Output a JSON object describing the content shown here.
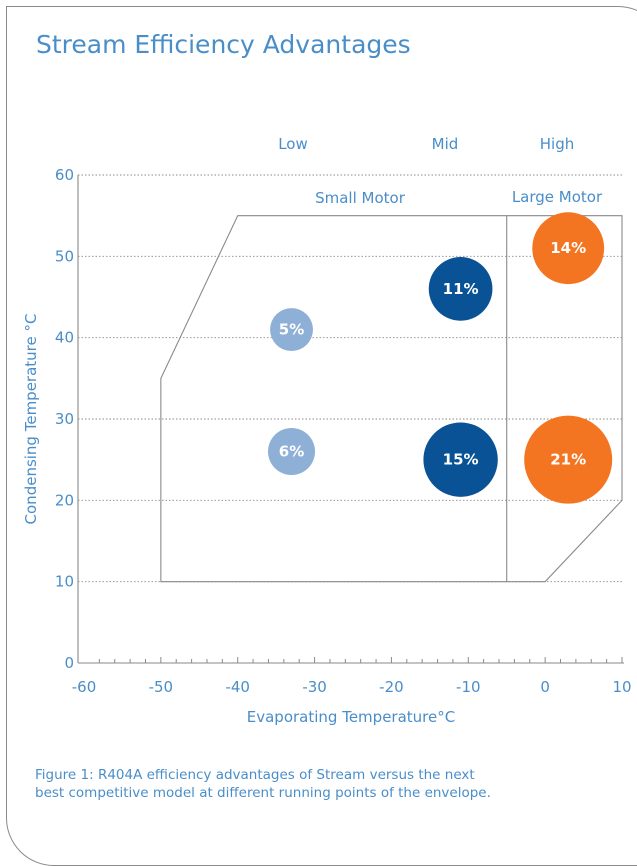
{
  "title": "Stream Efficiency Advantages",
  "caption": {
    "line1": "Figure 1: R404A efficiency advantages of Stream versus the next",
    "line2": "best competitive model at different running points of the envelope."
  },
  "colors": {
    "text": "#4a8ec9",
    "light_blue": "#8fb0d6",
    "dark_blue": "#0a5296",
    "orange": "#f47521",
    "border": "#8a8a8a"
  },
  "chart_data": {
    "type": "scatter",
    "title": "Stream Efficiency Advantages",
    "xlabel": "Evaporating Temperature°C",
    "ylabel": "Condensing Temperature °C",
    "xlim": [
      -60,
      10
    ],
    "ylim": [
      0,
      60
    ],
    "x_ticks": [
      -60,
      -50,
      -40,
      -30,
      -20,
      -10,
      0,
      10
    ],
    "y_ticks": [
      0,
      10,
      20,
      30,
      40,
      50,
      60
    ],
    "zones": [
      "Low",
      "Mid",
      "High"
    ],
    "motor_regions": [
      "Small Motor",
      "Large Motor"
    ],
    "envelope": [
      [
        -50,
        10
      ],
      [
        -50,
        35
      ],
      [
        -40,
        55
      ],
      [
        10,
        55
      ],
      [
        10,
        20
      ],
      [
        0,
        10
      ]
    ],
    "motor_divider_x": -5,
    "points": [
      {
        "x": -33,
        "y": 41,
        "label": "5%",
        "value": 5,
        "color": "light_blue"
      },
      {
        "x": -33,
        "y": 26,
        "label": "6%",
        "value": 6,
        "color": "light_blue"
      },
      {
        "x": -11,
        "y": 46,
        "label": "11%",
        "value": 11,
        "color": "dark_blue"
      },
      {
        "x": -11,
        "y": 25,
        "label": "15%",
        "value": 15,
        "color": "dark_blue"
      },
      {
        "x": 3,
        "y": 51,
        "label": "14%",
        "value": 14,
        "color": "orange"
      },
      {
        "x": 3,
        "y": 25,
        "label": "21%",
        "value": 21,
        "color": "orange"
      }
    ]
  }
}
